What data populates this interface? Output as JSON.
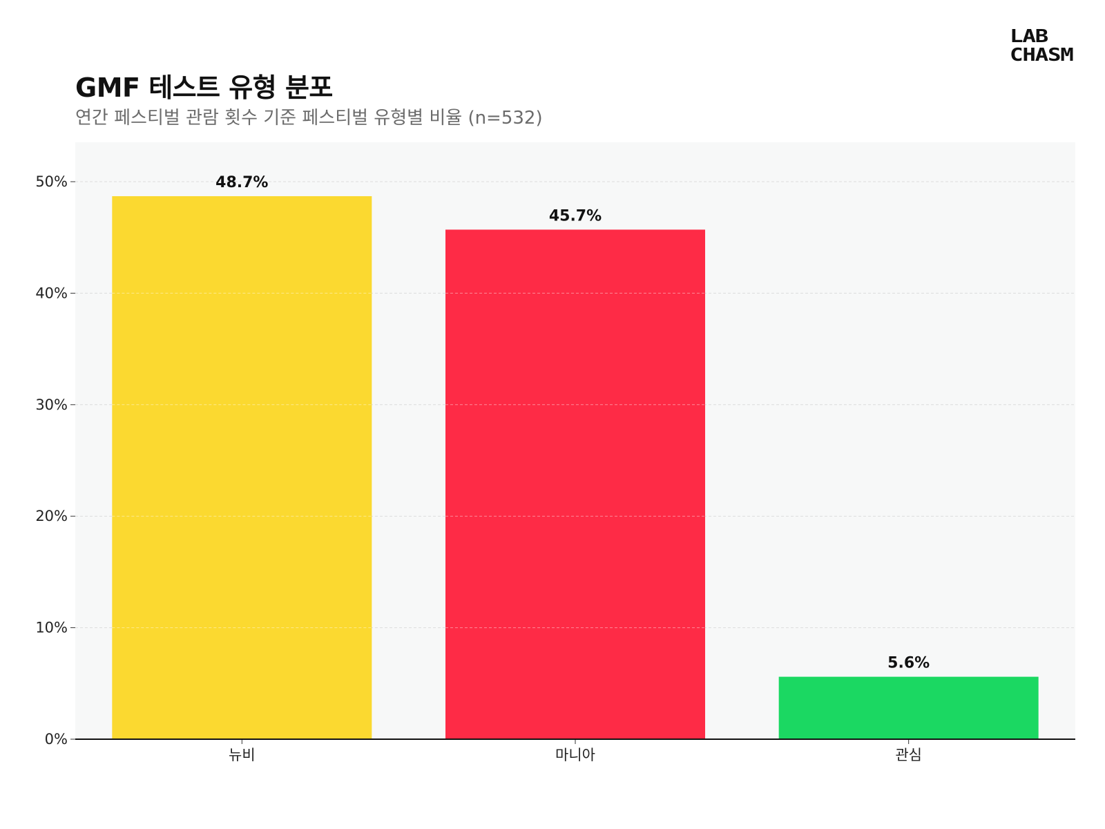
{
  "title": "GMF 테스트 유형 분포",
  "subtitle": "연간 페스티벌 관람 횟수 기준 페스티벌 유형별 비율 (n=532)",
  "logo": {
    "line1": "LAB",
    "line2": "CHASM"
  },
  "colors": {
    "plot_bg": "#f7f8f8",
    "grid": "#dcdcdc",
    "axis": "#111111"
  },
  "chart_data": {
    "type": "bar",
    "title": "GMF 테스트 유형 분포",
    "xlabel": "",
    "ylabel": "",
    "ylim": [
      0,
      53.5
    ],
    "yticks": [
      0,
      10,
      20,
      30,
      40,
      50
    ],
    "ytick_labels": [
      "0%",
      "10%",
      "20%",
      "30%",
      "40%",
      "50%"
    ],
    "categories": [
      "뉴비",
      "마니아",
      "관심"
    ],
    "values": [
      48.7,
      45.7,
      5.6
    ],
    "value_labels": [
      "48.7%",
      "45.7%",
      "5.6%"
    ],
    "bar_colors": [
      "#fbd930",
      "#fe2b46",
      "#1bd862"
    ],
    "grid": true,
    "legend": "none"
  }
}
